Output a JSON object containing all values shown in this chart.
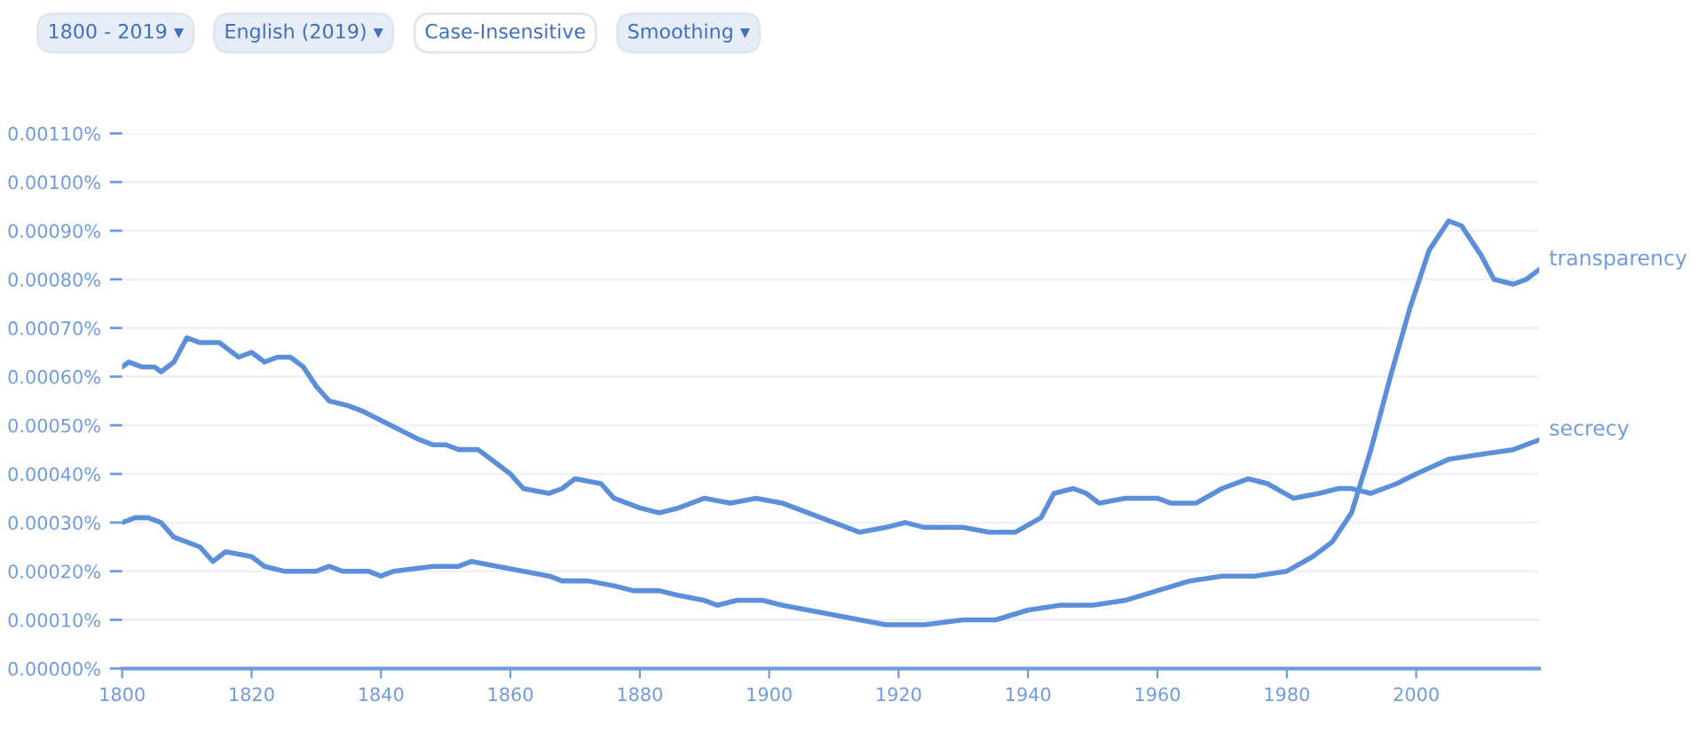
{
  "chart_data": {
    "type": "line",
    "annotations": [
      "1800 - 2019 ▾",
      "English (2019) ▾",
      "Case-Insensitive",
      "Smoothing ▾"
    ],
    "xlim": [
      1800,
      2019
    ],
    "ylim": [
      0,
      0.0011
    ],
    "xticks": [
      1800,
      1820,
      1840,
      1860,
      1880,
      1900,
      1920,
      1940,
      1960,
      1980,
      2000
    ],
    "yticks": [
      {
        "value": 0,
        "label": "0.00000%"
      },
      {
        "value": 0.0001,
        "label": "0.00010%"
      },
      {
        "value": 0.0002,
        "label": "0.00020%"
      },
      {
        "value": 0.0003,
        "label": "0.00030%"
      },
      {
        "value": 0.0004,
        "label": "0.00040%"
      },
      {
        "value": 0.0005,
        "label": "0.00050%"
      },
      {
        "value": 0.0006,
        "label": "0.00060%"
      },
      {
        "value": 0.0007,
        "label": "0.00070%"
      },
      {
        "value": 0.0008,
        "label": "0.00080%"
      },
      {
        "value": 0.0009,
        "label": "0.00090%"
      },
      {
        "value": 0.001,
        "label": "0.00100%"
      },
      {
        "value": 0.0011,
        "label": "0.00110%"
      }
    ],
    "grid": "y",
    "legend": false,
    "marker": "none",
    "line_style": "solid",
    "series": [
      {
        "name": "transparency",
        "color": "#5b8fd9",
        "x": [
          1800,
          1802,
          1804,
          1806,
          1808,
          1812,
          1814,
          1816,
          1820,
          1822,
          1825,
          1830,
          1832,
          1834,
          1838,
          1840,
          1842,
          1848,
          1852,
          1854,
          1858,
          1862,
          1866,
          1868,
          1872,
          1876,
          1879,
          1883,
          1886,
          1890,
          1892,
          1895,
          1899,
          1902,
          1906,
          1910,
          1914,
          1918,
          1924,
          1930,
          1935,
          1940,
          1945,
          1950,
          1955,
          1960,
          1965,
          1970,
          1975,
          1980,
          1984,
          1987,
          1990,
          1993,
          1996,
          1999,
          2002,
          2005,
          2007,
          2010,
          2012,
          2015,
          2017,
          2019
        ],
        "values": [
          0.0003,
          0.00031,
          0.00031,
          0.0003,
          0.00027,
          0.00025,
          0.00022,
          0.00024,
          0.00023,
          0.00021,
          0.0002,
          0.0002,
          0.00021,
          0.0002,
          0.0002,
          0.00019,
          0.0002,
          0.00021,
          0.00021,
          0.00022,
          0.00021,
          0.0002,
          0.00019,
          0.00018,
          0.00018,
          0.00017,
          0.00016,
          0.00016,
          0.00015,
          0.00014,
          0.00013,
          0.00014,
          0.00014,
          0.00013,
          0.00012,
          0.00011,
          0.0001,
          9e-05,
          9e-05,
          0.0001,
          0.0001,
          0.00012,
          0.00013,
          0.00013,
          0.00014,
          0.00016,
          0.00018,
          0.00019,
          0.00019,
          0.0002,
          0.00023,
          0.00026,
          0.00032,
          0.00045,
          0.0006,
          0.00074,
          0.00086,
          0.00092,
          0.00091,
          0.00085,
          0.0008,
          0.00079,
          0.0008,
          0.00082
        ]
      },
      {
        "name": "secrecy",
        "color": "#5b8fd9",
        "x": [
          1800,
          1801,
          1803,
          1805,
          1806,
          1808,
          1810,
          1812,
          1815,
          1818,
          1820,
          1822,
          1824,
          1826,
          1828,
          1830,
          1832,
          1835,
          1837,
          1840,
          1843,
          1846,
          1848,
          1850,
          1852,
          1855,
          1858,
          1860,
          1862,
          1866,
          1868,
          1870,
          1874,
          1876,
          1880,
          1883,
          1886,
          1890,
          1894,
          1898,
          1902,
          1906,
          1910,
          1914,
          1918,
          1921,
          1924,
          1927,
          1930,
          1934,
          1938,
          1942,
          1944,
          1947,
          1949,
          1951,
          1955,
          1960,
          1962,
          1966,
          1970,
          1974,
          1977,
          1981,
          1985,
          1988,
          1990,
          1993,
          1997,
          2000,
          2005,
          2010,
          2015,
          2019
        ],
        "values": [
          0.00062,
          0.00063,
          0.00062,
          0.00062,
          0.00061,
          0.00063,
          0.00068,
          0.00067,
          0.00067,
          0.00064,
          0.00065,
          0.00063,
          0.00064,
          0.00064,
          0.00062,
          0.00058,
          0.00055,
          0.00054,
          0.00053,
          0.00051,
          0.00049,
          0.00047,
          0.00046,
          0.00046,
          0.00045,
          0.00045,
          0.00042,
          0.0004,
          0.00037,
          0.00036,
          0.00037,
          0.00039,
          0.00038,
          0.00035,
          0.00033,
          0.00032,
          0.00033,
          0.00035,
          0.00034,
          0.00035,
          0.00034,
          0.00032,
          0.0003,
          0.00028,
          0.00029,
          0.0003,
          0.00029,
          0.00029,
          0.00029,
          0.00028,
          0.00028,
          0.00031,
          0.00036,
          0.00037,
          0.00036,
          0.00034,
          0.00035,
          0.00035,
          0.00034,
          0.00034,
          0.00037,
          0.00039,
          0.00038,
          0.00035,
          0.00036,
          0.00037,
          0.00037,
          0.00036,
          0.00038,
          0.0004,
          0.00043,
          0.00044,
          0.00045,
          0.00047
        ]
      }
    ]
  }
}
